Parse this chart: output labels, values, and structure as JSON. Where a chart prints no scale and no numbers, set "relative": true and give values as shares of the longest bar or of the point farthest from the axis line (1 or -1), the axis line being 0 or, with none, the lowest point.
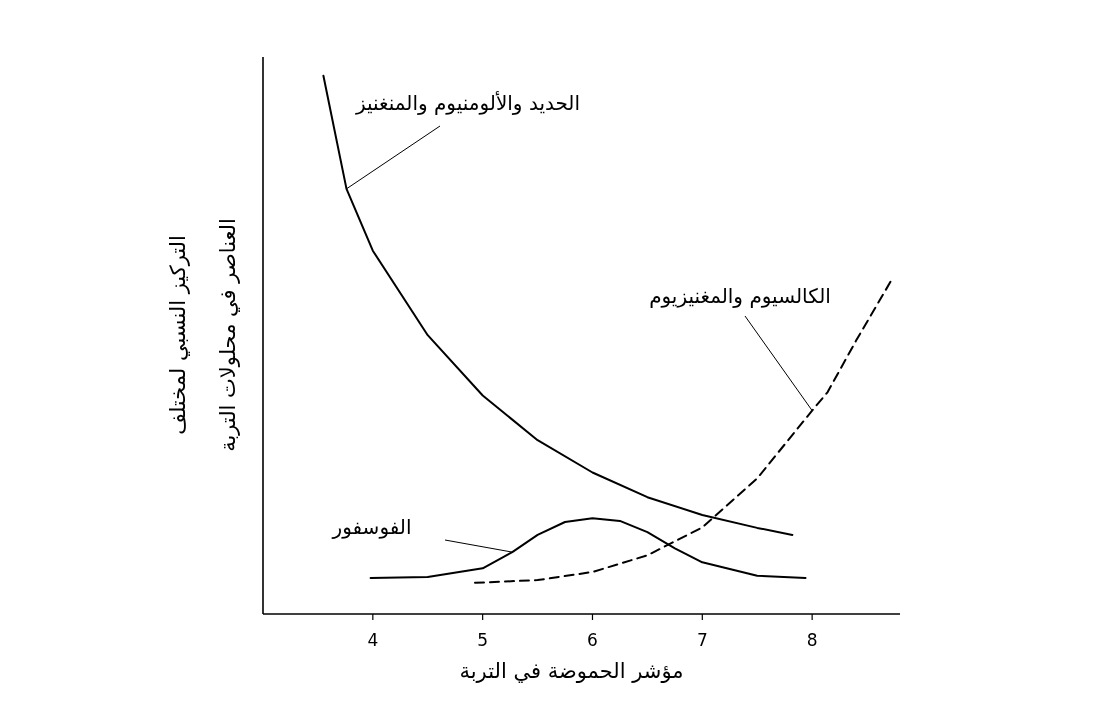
{
  "chart_data": {
    "type": "line",
    "relative": true,
    "xlabel": "مؤشر الحموضة في التربة",
    "ylabel": "التركيز النسبي لمختلف العناصر في محلولات التربة",
    "xlim": [
      3,
      8.8
    ],
    "xticks": [
      4,
      5,
      6,
      7,
      8
    ],
    "series": [
      {
        "name": "الحديد والألومنيوم والمنغنيز",
        "color": "#000000",
        "line_style": "solid",
        "x": [
          3.55,
          3.76,
          4.0,
          4.5,
          5.0,
          5.5,
          6.0,
          6.5,
          7.0,
          7.5,
          7.82
        ],
        "values": [
          1.0,
          0.79,
          0.675,
          0.518,
          0.406,
          0.323,
          0.263,
          0.217,
          0.184,
          0.16,
          0.147
        ]
      },
      {
        "name": "الكالسيوم والمغنيزيوم",
        "color": "#000000",
        "line_style": "dashed",
        "x": [
          4.93,
          5.5,
          6.0,
          6.5,
          7.0,
          7.5,
          8.0,
          8.14,
          8.4,
          8.73
        ],
        "values": [
          0.058,
          0.063,
          0.078,
          0.109,
          0.161,
          0.252,
          0.378,
          0.412,
          0.508,
          0.623
        ]
      },
      {
        "name": "الفوسفور",
        "color": "#000000",
        "line_style": "solid",
        "x": [
          3.98,
          4.5,
          5.0,
          5.27,
          5.5,
          5.75,
          6.0,
          6.25,
          6.5,
          6.75,
          7.0,
          7.5,
          7.94
        ],
        "values": [
          0.067,
          0.069,
          0.085,
          0.115,
          0.147,
          0.171,
          0.178,
          0.173,
          0.152,
          0.122,
          0.096,
          0.071,
          0.067
        ]
      }
    ]
  }
}
